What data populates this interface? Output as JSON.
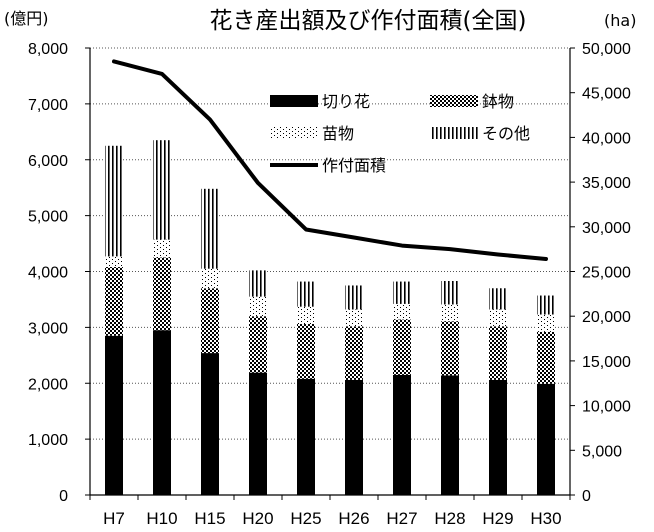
{
  "chart_data": {
    "type": "bar",
    "title": "花き産出額及び作付面積(全国)",
    "y_left_unit": "(億円)",
    "y_right_unit": "(ha)",
    "categories": [
      "H7",
      "H10",
      "H15",
      "H20",
      "H25",
      "H26",
      "H27",
      "H28",
      "H29",
      "H30"
    ],
    "series": [
      {
        "name": "切り花",
        "kind": "bar",
        "axis": "left",
        "pattern": "solid",
        "values": [
          2850,
          2950,
          2540,
          2190,
          2080,
          2060,
          2150,
          2140,
          2060,
          1990
        ]
      },
      {
        "name": "鉢物",
        "kind": "bar",
        "axis": "left",
        "pattern": "checker",
        "values": [
          1230,
          1300,
          1160,
          1010,
          980,
          960,
          990,
          970,
          960,
          930
        ]
      },
      {
        "name": "苗物",
        "kind": "bar",
        "axis": "left",
        "pattern": "dots",
        "values": [
          190,
          320,
          350,
          350,
          310,
          300,
          280,
          300,
          300,
          310
        ]
      },
      {
        "name": "その他",
        "kind": "bar",
        "axis": "left",
        "pattern": "vlines",
        "values": [
          1980,
          1780,
          1430,
          470,
          450,
          430,
          400,
          420,
          380,
          340
        ]
      },
      {
        "name": "作付面積",
        "kind": "line",
        "axis": "right",
        "values": [
          48500,
          47100,
          42000,
          34900,
          29700,
          28800,
          27900,
          27500,
          26900,
          26400
        ]
      }
    ],
    "y_left": {
      "min": 0,
      "max": 8000,
      "step": 1000
    },
    "y_right": {
      "min": 0,
      "max": 50000,
      "step": 5000
    },
    "grid": true,
    "grid_style": "dotted",
    "legend_position": "top-right, inside plot",
    "colors": {
      "bar": "#000000",
      "line": "#000000",
      "background": "#ffffff"
    }
  }
}
